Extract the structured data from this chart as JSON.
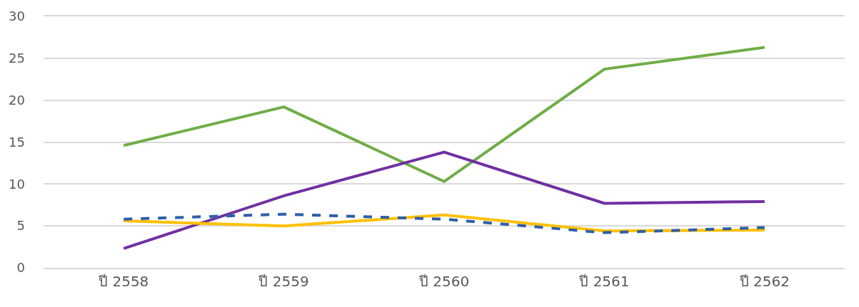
{
  "chart_data": {
    "type": "line",
    "categories": [
      "ปี 2558",
      "ปี 2559",
      "ปี 2560",
      "ปี 2561",
      "ปี 2562"
    ],
    "series": [
      {
        "color": "#70ad47",
        "values": [
          14.6,
          19.2,
          10.3,
          23.7,
          26.3
        ]
      },
      {
        "color": "#7030a0",
        "values": [
          2.3,
          8.6,
          13.8,
          7.7,
          7.9
        ]
      },
      {
        "color": "#ffc000",
        "values": [
          5.6,
          5.0,
          6.3,
          4.4,
          4.5
        ]
      },
      {
        "color": "#2e5fa8",
        "values": [
          5.8,
          6.4,
          5.8,
          4.2,
          4.8
        ],
        "line_style": "dashed"
      }
    ],
    "ylim": [
      0,
      30
    ],
    "yticks": [
      0,
      5,
      10,
      15,
      20,
      25,
      30
    ],
    "grid": "y",
    "marker": "none"
  }
}
